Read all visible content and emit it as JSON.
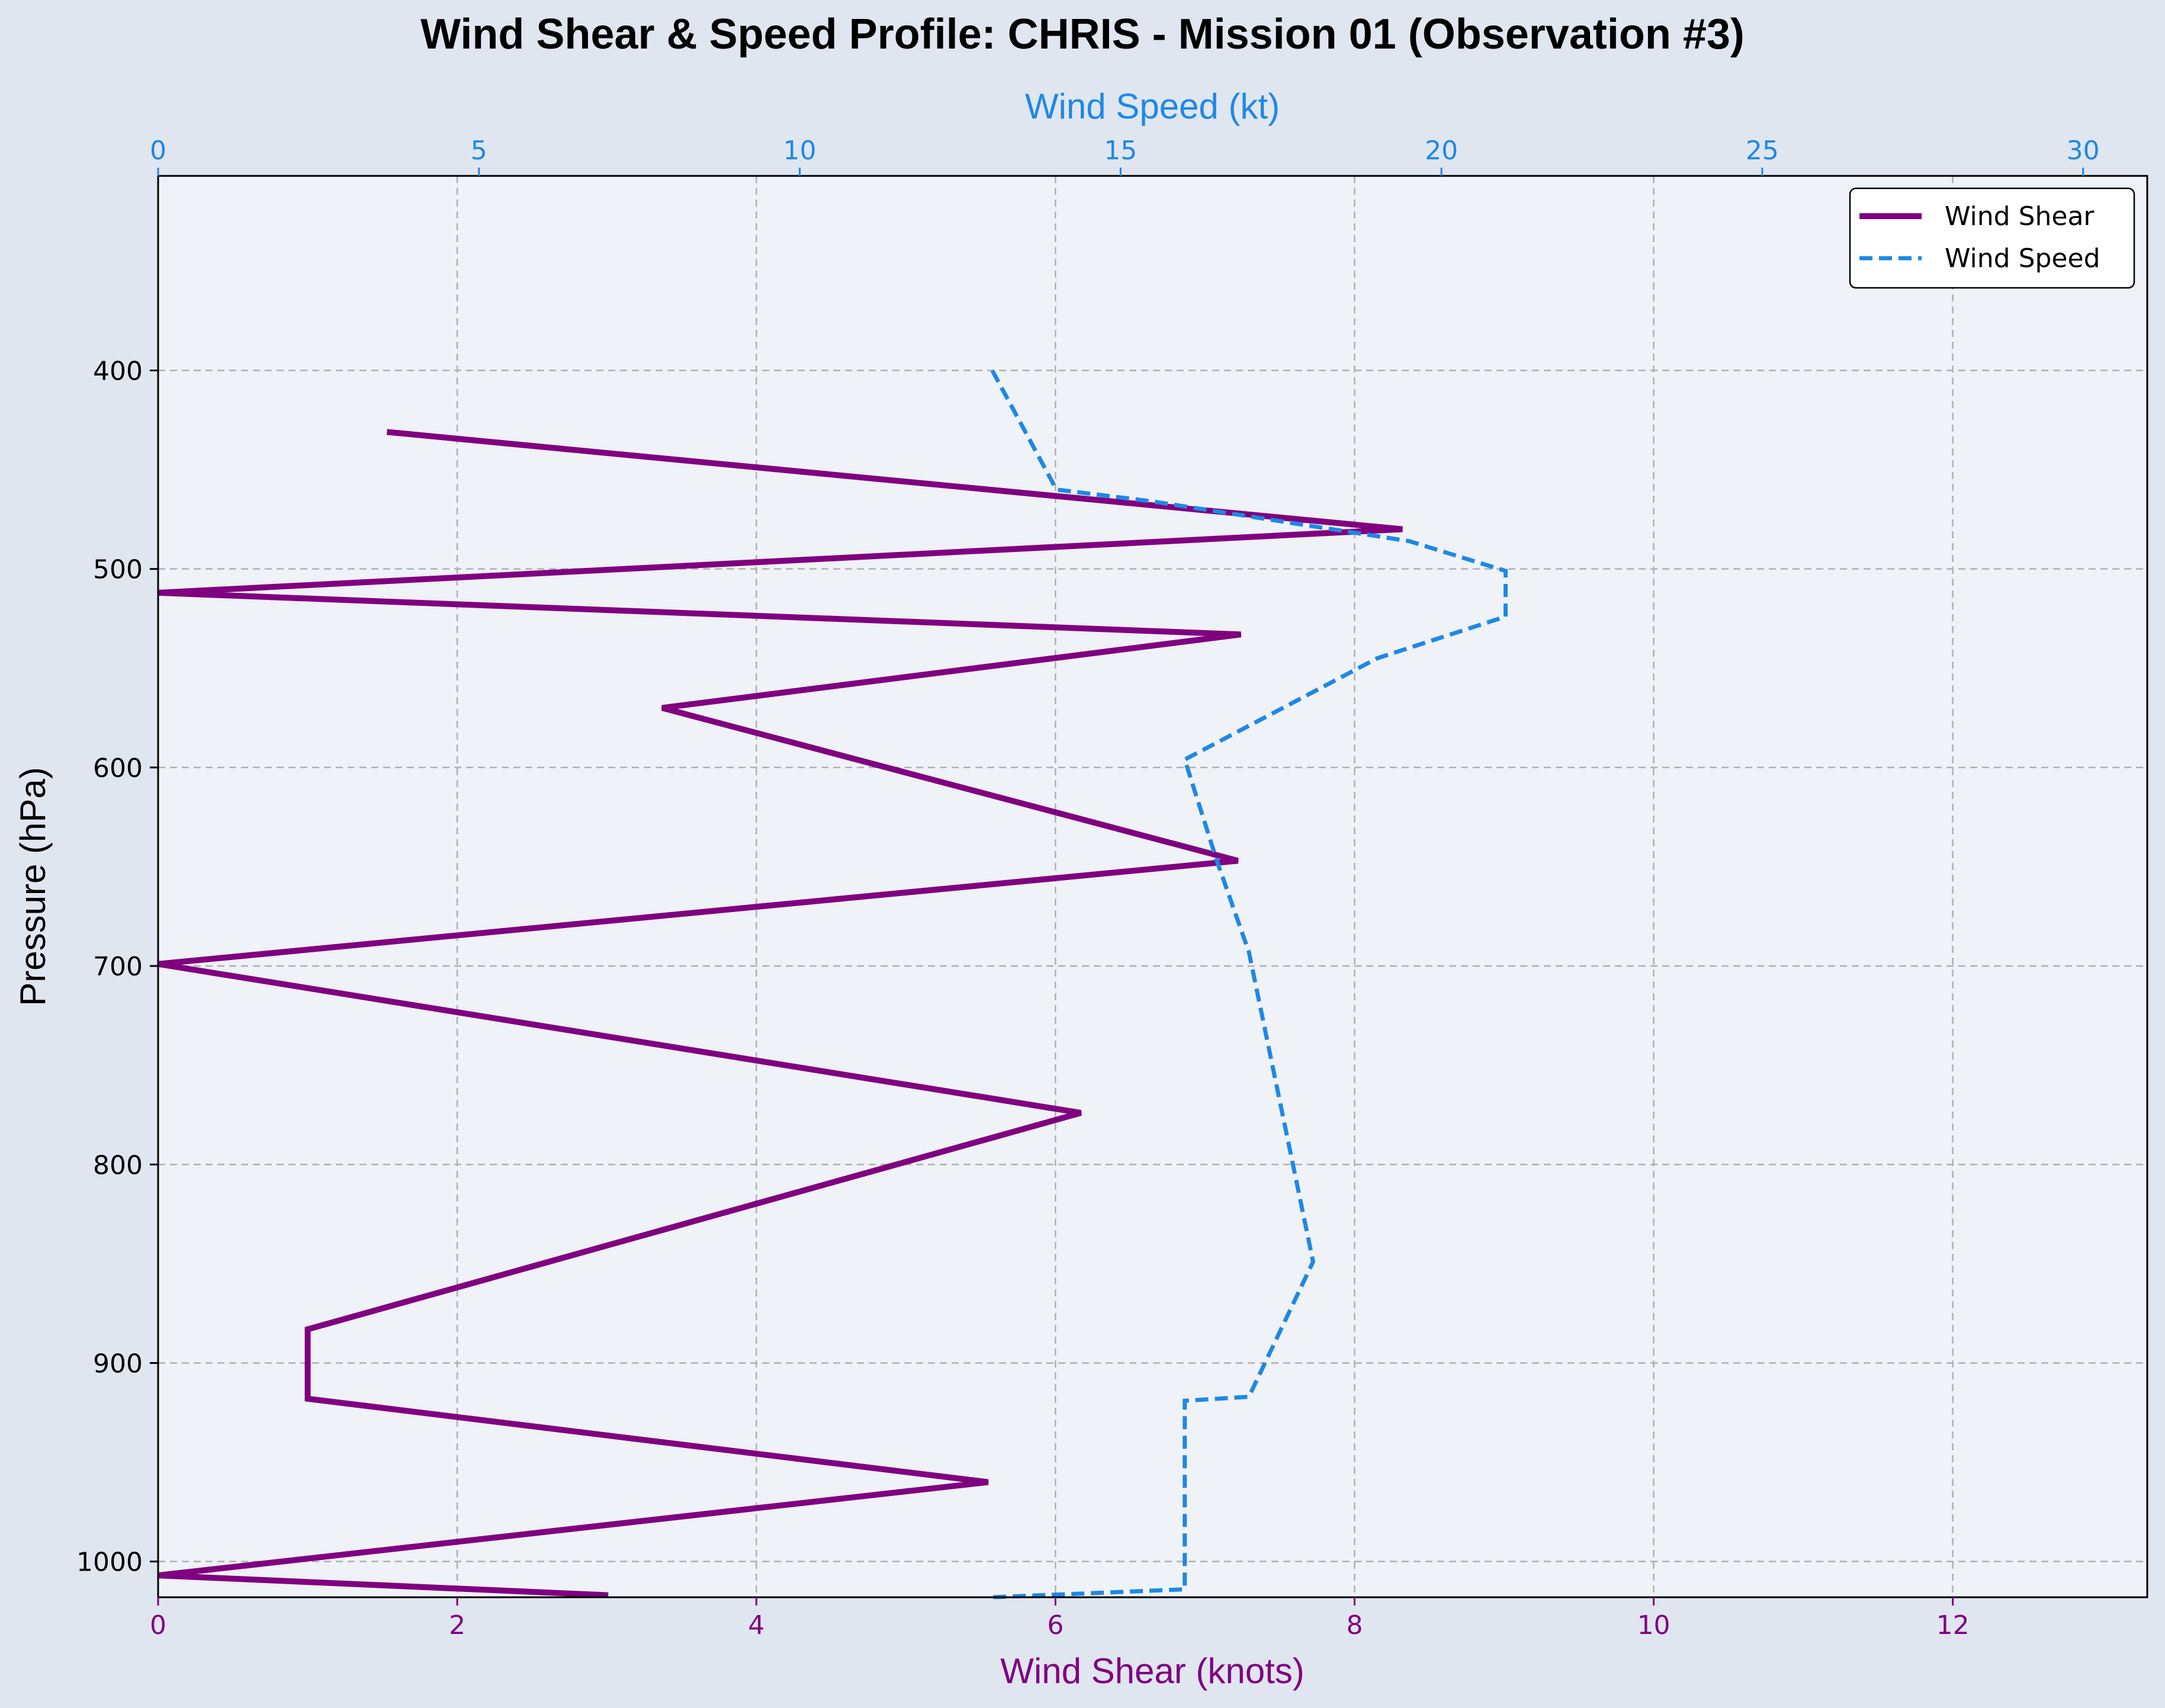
{
  "chart_data": {
    "type": "line",
    "title": "Wind Shear & Speed Profile: CHRIS - Mission 01 (Observation #3)",
    "xlabel_bottom": "Wind Shear (knots)",
    "xlabel_top": "Wind Speed (kt)",
    "ylabel": "Pressure (hPa)",
    "shear_xlim": [
      0,
      13.3
    ],
    "speed_xlim": [
      0,
      31.0
    ],
    "ylim": [
      1018,
      302
    ],
    "y_inverted": true,
    "grid": true,
    "legend_position": "top-right",
    "shear_ticks": [
      "0",
      "2",
      "4",
      "6",
      "8",
      "10",
      "12"
    ],
    "speed_ticks": [
      "0",
      "5",
      "10",
      "15",
      "20",
      "25",
      "30"
    ],
    "pressure_ticks": [
      "400",
      "500",
      "600",
      "700",
      "800",
      "900",
      "1000"
    ],
    "colors": {
      "shear": "#800080",
      "speed": "#1e88e5",
      "background": "#e0e6f0",
      "plot_bg": "#eff2f7"
    },
    "series": [
      {
        "name": "Wind Shear",
        "axis": "bottom",
        "style": "solid",
        "points": [
          {
            "x": 1.53,
            "p": 431
          },
          {
            "x": 8.32,
            "p": 480
          },
          {
            "x": 0.0,
            "p": 512
          },
          {
            "x": 7.24,
            "p": 533
          },
          {
            "x": 3.37,
            "p": 570
          },
          {
            "x": 7.22,
            "p": 647
          },
          {
            "x": 0.0,
            "p": 699
          },
          {
            "x": 6.17,
            "p": 774
          },
          {
            "x": 1.0,
            "p": 883
          },
          {
            "x": 1.0,
            "p": 918
          },
          {
            "x": 5.55,
            "p": 960
          },
          {
            "x": 0.0,
            "p": 1007
          },
          {
            "x": 3.01,
            "p": 1017
          }
        ]
      },
      {
        "name": "Wind Speed",
        "axis": "top",
        "style": "dashed",
        "points": [
          {
            "x": 13.0,
            "p": 400
          },
          {
            "x": 14.0,
            "p": 460
          },
          {
            "x": 15.5,
            "p": 466
          },
          {
            "x": 19.5,
            "p": 486
          },
          {
            "x": 21.0,
            "p": 501
          },
          {
            "x": 21.0,
            "p": 524
          },
          {
            "x": 19.0,
            "p": 545
          },
          {
            "x": 16.0,
            "p": 596
          },
          {
            "x": 16.5,
            "p": 647
          },
          {
            "x": 17.0,
            "p": 693
          },
          {
            "x": 18.0,
            "p": 849
          },
          {
            "x": 17.0,
            "p": 917
          },
          {
            "x": 16.0,
            "p": 919
          },
          {
            "x": 16.0,
            "p": 1014
          },
          {
            "x": 13.0,
            "p": 1018
          }
        ]
      }
    ]
  }
}
